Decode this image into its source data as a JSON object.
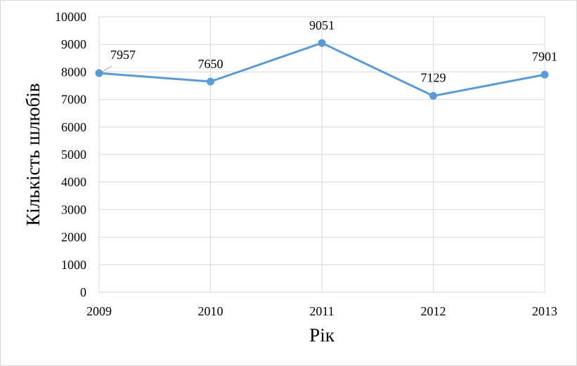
{
  "chart_data": {
    "type": "line",
    "title": "",
    "xlabel": "Рік",
    "ylabel": "Кількість шлюбів",
    "categories": [
      "2009",
      "2010",
      "2011",
      "2012",
      "2013"
    ],
    "series": [
      {
        "values": [
          7957,
          7650,
          9051,
          7129,
          7901
        ]
      }
    ],
    "data_labels": [
      "7957",
      "7650",
      "9051",
      "7129",
      "7901"
    ],
    "ylim": [
      0,
      10000
    ],
    "yticks": [
      0,
      1000,
      2000,
      3000,
      4000,
      5000,
      6000,
      7000,
      8000,
      9000,
      10000
    ],
    "grid": true,
    "legend": "none",
    "colors": {
      "line": "#5b9bd5",
      "grid": "#d9d9d9",
      "leader": "#a6a6a6"
    }
  }
}
